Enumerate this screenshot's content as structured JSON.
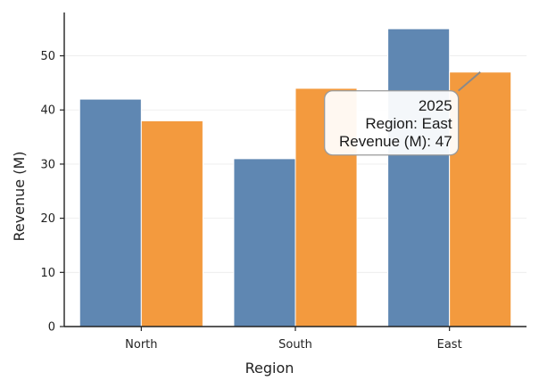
{
  "chart_data": {
    "type": "bar",
    "title": "",
    "xlabel": "Region",
    "ylabel": "Revenue (M)",
    "categories": [
      "North",
      "South",
      "East"
    ],
    "series": [
      {
        "values": [
          42,
          31,
          55
        ],
        "color": "#5f87b2"
      },
      {
        "values": [
          38,
          44,
          47
        ],
        "color": "#f39a3e"
      }
    ],
    "ylim": [
      0,
      58
    ],
    "yticks": [
      0,
      10,
      20,
      30,
      40,
      50
    ],
    "grid": true,
    "legend": "none",
    "tooltip": {
      "lines": [
        "2025",
        "Region: East",
        "Revenue (M): 47"
      ],
      "category": "East",
      "series_index": 1
    }
  }
}
